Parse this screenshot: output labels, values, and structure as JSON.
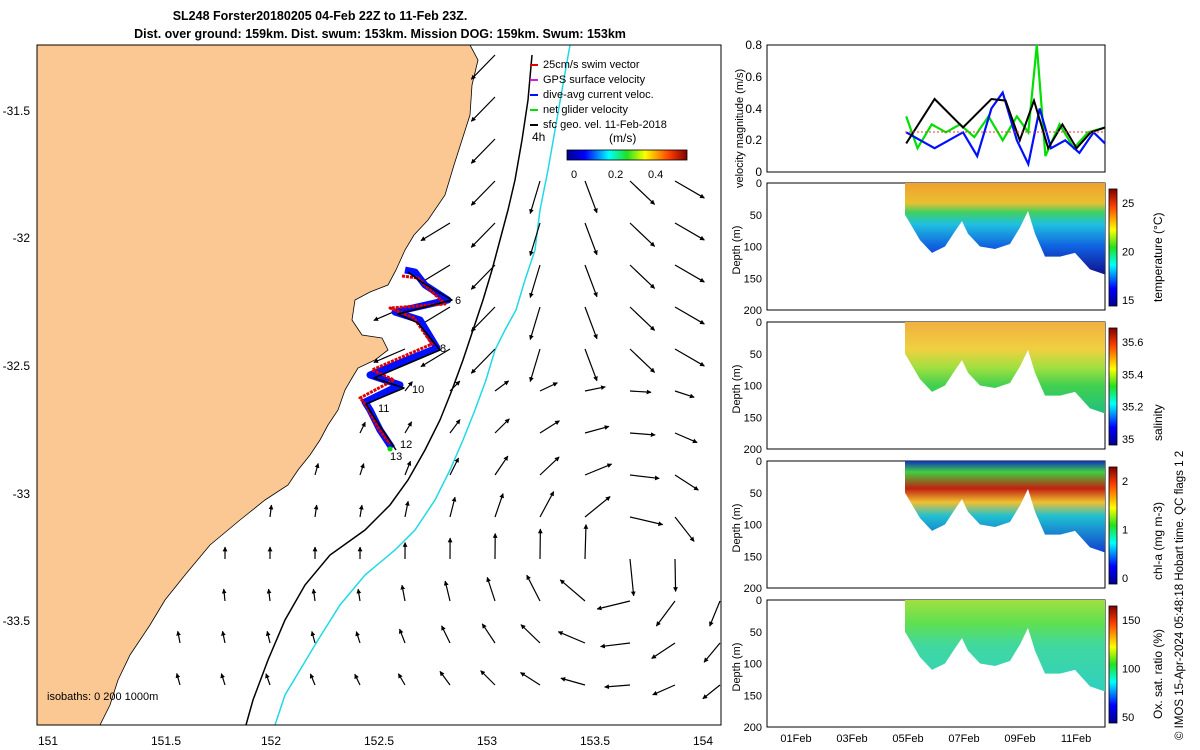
{
  "title": {
    "line1": "SL248 Forster20180205 04-Feb 22Z to 11-Feb 23Z.",
    "line2": "Dist. over ground: 159km. Dist. swum: 153km. Mission DOG: 159km. Swum: 153km"
  },
  "credit": "© IMOS 15-Apr-2024 05:48:18 Hobart time. QC flags 1  2",
  "colors": {
    "land": "#fbc894",
    "ocean": "#ffffff",
    "isobath_200": "#000000",
    "isobath_1000": "#22d8e6",
    "swim": "#e00000",
    "gps_surface": "#d81bd8",
    "dive_avg": "#0010ff",
    "net_glider": "#00e000",
    "sfc_geo": "#000000"
  },
  "map": {
    "xticks": [
      "151",
      "151.5",
      "152",
      "152.5",
      "153",
      "153.5",
      "154"
    ],
    "yticks": [
      "-31.5",
      "-32",
      "-32.5",
      "-33",
      "-33.5"
    ],
    "isobath_label": "isobaths: 0  200  1000m",
    "legend": [
      {
        "label": "25cm/s swim vector",
        "color": "#e00000"
      },
      {
        "label": "GPS surface velocity",
        "color": "#d81bd8"
      },
      {
        "label": "dive-avg current veloc.",
        "color": "#0010ff"
      },
      {
        "label": "net glider velocity",
        "color": "#00e000"
      },
      {
        "label": "sfc geo. vel. 11-Feb-2018",
        "color": "#000000"
      }
    ],
    "time_label": "4h",
    "colorbar": {
      "label": "(m/s)",
      "ticks": [
        "0",
        "0.2",
        "0.4"
      ]
    },
    "track_labels": [
      "6",
      "8",
      "10",
      "11",
      "12",
      "13"
    ]
  },
  "timeseries": {
    "xticks": [
      "01Feb",
      "03Feb",
      "05Feb",
      "07Feb",
      "09Feb",
      "11Feb"
    ],
    "velocity": {
      "ylabel": "velocity magnitude (m/s)",
      "yticks": [
        "0",
        "0.2",
        "0.4",
        "0.6",
        "0.8"
      ]
    },
    "panels": [
      {
        "ylabel": "Depth (m)",
        "yticks": [
          "0",
          "50",
          "100",
          "150",
          "200"
        ],
        "cbar_label": "temperature (°C)",
        "cbar_ticks": [
          "25",
          "20",
          "15"
        ]
      },
      {
        "ylabel": "Depth (m)",
        "yticks": [
          "0",
          "50",
          "100",
          "150",
          "200"
        ],
        "cbar_label": "salinity",
        "cbar_ticks": [
          "35.6",
          "35.4",
          "35.2",
          "35"
        ]
      },
      {
        "ylabel": "Depth (m)",
        "yticks": [
          "0",
          "50",
          "100",
          "150",
          "200"
        ],
        "cbar_label": "chl-a (mg m-3)",
        "cbar_ticks": [
          "2",
          "1",
          "0"
        ]
      },
      {
        "ylabel": "Depth (m)",
        "yticks": [
          "0",
          "50",
          "100",
          "150",
          "200"
        ],
        "cbar_label": "Ox. sat. ratio (%)",
        "cbar_ticks": [
          "150",
          "100",
          "50"
        ]
      }
    ]
  },
  "chart_data": [
    {
      "type": "line",
      "name": "map",
      "xlabel": "",
      "ylabel": "",
      "xlim": [
        150.98,
        154.07
      ],
      "ylim": [
        -33.92,
        -31.26
      ],
      "track_points": [
        {
          "lon": 152.62,
          "lat": -32.17
        },
        {
          "lon": 152.83,
          "lat": -32.26
        },
        {
          "lon": 152.55,
          "lat": -32.28
        },
        {
          "lon": 152.73,
          "lat": -32.45
        },
        {
          "lon": 152.41,
          "lat": -32.54
        },
        {
          "lon": 152.57,
          "lat": -32.58
        },
        {
          "lon": 152.4,
          "lat": -32.63
        },
        {
          "lon": 152.59,
          "lat": -32.82
        }
      ]
    },
    {
      "type": "line",
      "name": "velocity magnitude",
      "xlabel": "",
      "ylabel": "velocity magnitude (m/s)",
      "ylim": [
        0,
        0.8
      ],
      "x_range_days": [
        0,
        11.9
      ],
      "series": [
        {
          "name": "net glider velocity",
          "x": [
            4.9,
            5.3,
            5.8,
            6.3,
            6.8,
            7.3,
            7.8,
            8.3,
            8.8,
            9.2,
            9.5,
            9.8,
            10.3,
            10.8,
            11.3,
            11.9
          ],
          "values": [
            0.35,
            0.15,
            0.3,
            0.25,
            0.3,
            0.22,
            0.35,
            0.2,
            0.35,
            0.25,
            0.8,
            0.1,
            0.3,
            0.15,
            0.25,
            0.28
          ]
        },
        {
          "name": "dive-avg current veloc.",
          "x": [
            4.9,
            5.4,
            5.9,
            6.4,
            6.9,
            7.4,
            7.9,
            8.3,
            8.8,
            9.2,
            9.6,
            10.0,
            10.5,
            11.0,
            11.5,
            11.9
          ],
          "values": [
            0.25,
            0.2,
            0.15,
            0.2,
            0.25,
            0.1,
            0.4,
            0.5,
            0.2,
            0.05,
            0.4,
            0.15,
            0.2,
            0.12,
            0.25,
            0.18
          ]
        },
        {
          "name": "sfc geo. vel. 11-Feb-2018",
          "x": [
            4.9,
            5.9,
            6.9,
            7.9,
            8.4,
            8.9,
            9.4,
            9.9,
            10.4,
            10.9,
            11.4,
            11.9
          ],
          "values": [
            0.18,
            0.46,
            0.28,
            0.46,
            0.45,
            0.2,
            0.45,
            0.15,
            0.3,
            0.15,
            0.25,
            0.28
          ]
        }
      ]
    }
  ]
}
